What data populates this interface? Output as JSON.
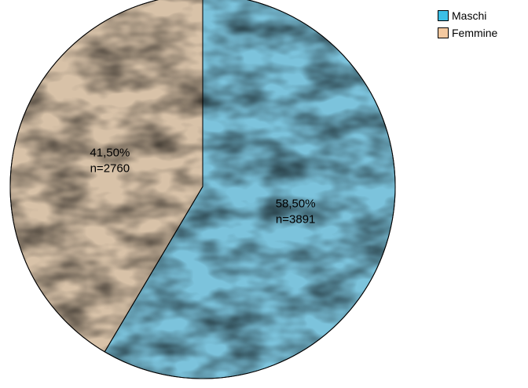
{
  "chart_data": {
    "type": "pie",
    "slices": [
      {
        "name": "Maschi",
        "percent_label": "58,50%",
        "count_label": "n=3891",
        "value": 3891,
        "color": "#7cc3dc",
        "texture_dark": "#4f9dc0",
        "texture_light": "#a6dcef"
      },
      {
        "name": "Femmine",
        "percent_label": "41,50%",
        "count_label": "n=2760",
        "value": 2760,
        "color": "#d8c2a8",
        "texture_dark": "#b49e85",
        "texture_light": "#ece0cf"
      }
    ],
    "start_angle": "12 o'clock",
    "direction": "clockwise",
    "legend_position": "top-right"
  },
  "legend": {
    "items": [
      {
        "label": "Maschi",
        "color": "#3cbfe6"
      },
      {
        "label": "Femmine",
        "color": "#f4c9a0"
      }
    ]
  }
}
